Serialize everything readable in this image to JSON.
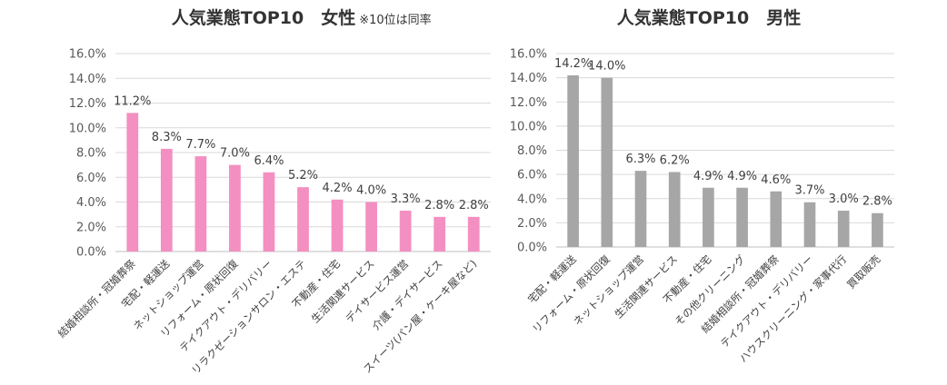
{
  "chart_data": [
    {
      "type": "bar",
      "title": "人気業態TOP10　女性",
      "note": "※10位は同率",
      "categories": [
        "結婚相談所・冠婚葬祭",
        "宅配・軽運送",
        "ネットショップ運営",
        "リフォーム・原状回復",
        "テイクアウト・デリバリー",
        "リラクゼーションサロン・エステ",
        "不動産・住宅",
        "生活関連サービス",
        "デイサービス運営",
        "介護・デイサービス",
        "スイーツ(パン屋・ケーキ屋など)"
      ],
      "values": [
        11.2,
        8.3,
        7.7,
        7.0,
        6.4,
        5.2,
        4.2,
        4.0,
        3.3,
        2.8,
        2.8
      ],
      "value_labels": [
        "11.2%",
        "8.3%",
        "7.7%",
        "7.0%",
        "6.4%",
        "5.2%",
        "4.2%",
        "4.0%",
        "3.3%",
        "2.8%",
        "2.8%"
      ],
      "ylim": [
        0,
        16
      ],
      "yticks": [
        "0.0%",
        "2.0%",
        "4.0%",
        "6.0%",
        "8.0%",
        "10.0%",
        "12.0%",
        "14.0%",
        "16.0%"
      ],
      "grid": true,
      "color": "#f48fc1"
    },
    {
      "type": "bar",
      "title": "人気業態TOP10　男性",
      "note": "",
      "categories": [
        "宅配・軽運送",
        "リフォーム・原状回復",
        "ネットショップ運営",
        "生活関連サービス",
        "不動産・住宅",
        "その他クリーニング",
        "結婚相談所・冠婚葬祭",
        "テイクアウト・デリバリー",
        "ハウスクリーニング・家事代行",
        "買取販売"
      ],
      "values": [
        14.2,
        14.0,
        6.3,
        6.2,
        4.9,
        4.9,
        4.6,
        3.7,
        3.0,
        2.8
      ],
      "value_labels": [
        "14.2%",
        "14.0%",
        "6.3%",
        "6.2%",
        "4.9%",
        "4.9%",
        "4.6%",
        "3.7%",
        "3.0%",
        "2.8%"
      ],
      "ylim": [
        0,
        16
      ],
      "yticks": [
        "0.0%",
        "2.0%",
        "4.0%",
        "6.0%",
        "8.0%",
        "10.0%",
        "12.0%",
        "14.0%",
        "16.0%"
      ],
      "grid": true,
      "color": "#a6a6a6"
    }
  ]
}
